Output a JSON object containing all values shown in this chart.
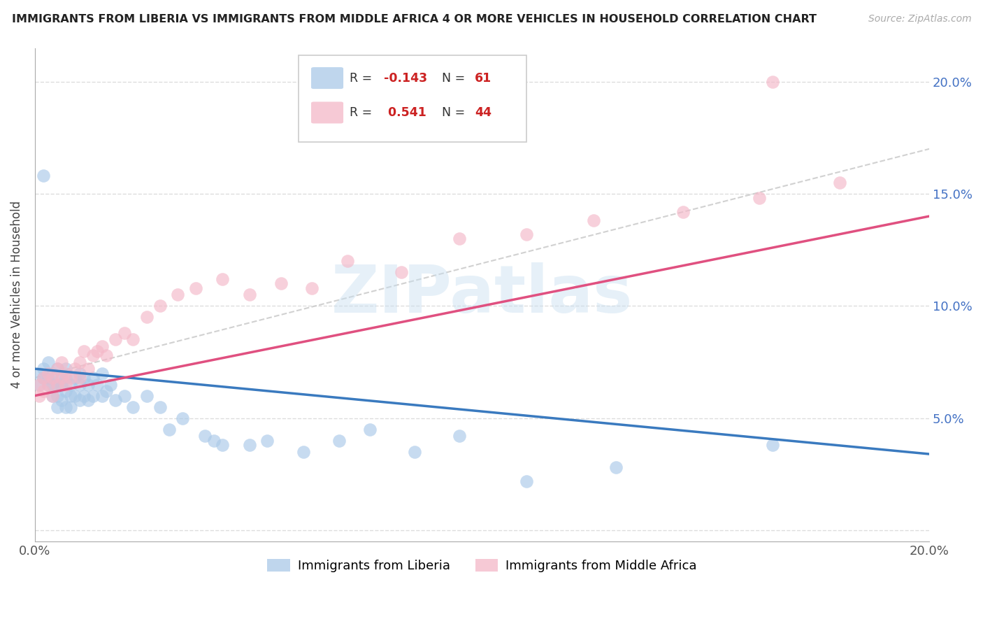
{
  "title": "IMMIGRANTS FROM LIBERIA VS IMMIGRANTS FROM MIDDLE AFRICA 4 OR MORE VEHICLES IN HOUSEHOLD CORRELATION CHART",
  "source": "Source: ZipAtlas.com",
  "ylabel": "4 or more Vehicles in Household",
  "xlim": [
    0.0,
    0.2
  ],
  "ylim": [
    -0.005,
    0.215
  ],
  "yticks": [
    0.0,
    0.05,
    0.1,
    0.15,
    0.2
  ],
  "ytick_labels": [
    "",
    "5.0%",
    "10.0%",
    "15.0%",
    "20.0%"
  ],
  "color_liberia": "#aac9e8",
  "color_middle_africa": "#f4b8c8",
  "color_line_liberia": "#3a7abf",
  "color_line_middle_africa": "#e05080",
  "color_dashed_line": "#cccccc",
  "watermark_text": "ZIPatlas",
  "liberia_line_start_y": 0.072,
  "liberia_line_end_y": 0.034,
  "middle_africa_line_start_y": 0.06,
  "middle_africa_line_end_y": 0.14,
  "dashed_line_start_y": 0.068,
  "dashed_line_end_y": 0.17,
  "liberia_x": [
    0.001,
    0.001,
    0.002,
    0.002,
    0.003,
    0.003,
    0.003,
    0.004,
    0.004,
    0.004,
    0.005,
    0.005,
    0.005,
    0.005,
    0.006,
    0.006,
    0.006,
    0.007,
    0.007,
    0.007,
    0.007,
    0.008,
    0.008,
    0.008,
    0.009,
    0.009,
    0.01,
    0.01,
    0.01,
    0.011,
    0.011,
    0.012,
    0.012,
    0.013,
    0.013,
    0.014,
    0.015,
    0.015,
    0.016,
    0.017,
    0.018,
    0.02,
    0.022,
    0.025,
    0.028,
    0.03,
    0.033,
    0.038,
    0.04,
    0.042,
    0.048,
    0.052,
    0.06,
    0.068,
    0.075,
    0.085,
    0.095,
    0.11,
    0.13,
    0.165,
    0.002
  ],
  "liberia_y": [
    0.065,
    0.07,
    0.072,
    0.068,
    0.075,
    0.068,
    0.065,
    0.07,
    0.065,
    0.06,
    0.072,
    0.065,
    0.06,
    0.055,
    0.068,
    0.065,
    0.058,
    0.072,
    0.068,
    0.062,
    0.055,
    0.065,
    0.06,
    0.055,
    0.068,
    0.06,
    0.07,
    0.065,
    0.058,
    0.068,
    0.06,
    0.065,
    0.058,
    0.068,
    0.06,
    0.065,
    0.07,
    0.06,
    0.062,
    0.065,
    0.058,
    0.06,
    0.055,
    0.06,
    0.055,
    0.045,
    0.05,
    0.042,
    0.04,
    0.038,
    0.038,
    0.04,
    0.035,
    0.04,
    0.045,
    0.035,
    0.042,
    0.022,
    0.028,
    0.038,
    0.158
  ],
  "middle_africa_x": [
    0.001,
    0.001,
    0.002,
    0.002,
    0.003,
    0.003,
    0.004,
    0.004,
    0.005,
    0.005,
    0.006,
    0.006,
    0.007,
    0.007,
    0.008,
    0.009,
    0.01,
    0.01,
    0.011,
    0.012,
    0.013,
    0.014,
    0.015,
    0.016,
    0.018,
    0.02,
    0.022,
    0.025,
    0.028,
    0.032,
    0.036,
    0.042,
    0.048,
    0.055,
    0.062,
    0.07,
    0.082,
    0.095,
    0.11,
    0.125,
    0.145,
    0.162,
    0.18,
    0.165
  ],
  "middle_africa_y": [
    0.065,
    0.06,
    0.068,
    0.062,
    0.07,
    0.065,
    0.068,
    0.06,
    0.072,
    0.065,
    0.068,
    0.075,
    0.07,
    0.065,
    0.068,
    0.072,
    0.075,
    0.068,
    0.08,
    0.072,
    0.078,
    0.08,
    0.082,
    0.078,
    0.085,
    0.088,
    0.085,
    0.095,
    0.1,
    0.105,
    0.108,
    0.112,
    0.105,
    0.11,
    0.108,
    0.12,
    0.115,
    0.13,
    0.132,
    0.138,
    0.142,
    0.148,
    0.155,
    0.2
  ]
}
